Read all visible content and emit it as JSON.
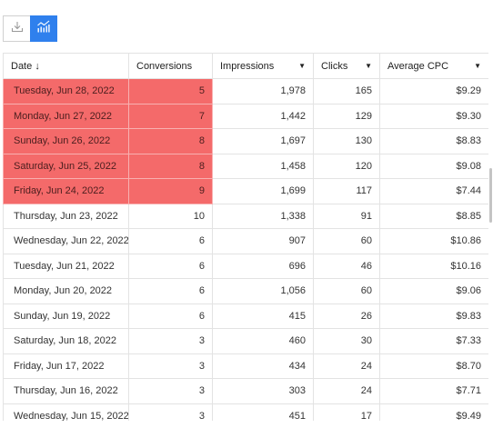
{
  "toolbar": {
    "download_icon": "download-icon",
    "chart_icon": "bar-chart-icon"
  },
  "columns": {
    "date": "Date",
    "date_sort": "↓",
    "conversions": "Conversions",
    "impressions": "Impressions",
    "clicks": "Clicks",
    "average_cpc": "Average CPC",
    "menu_caret": "▼"
  },
  "rows": [
    {
      "date": "Tuesday, Jun 28, 2022",
      "conversions": "5",
      "impressions": "1,978",
      "clicks": "165",
      "cpc": "$9.29",
      "highlight": true
    },
    {
      "date": "Monday, Jun 27, 2022",
      "conversions": "7",
      "impressions": "1,442",
      "clicks": "129",
      "cpc": "$9.30",
      "highlight": true
    },
    {
      "date": "Sunday, Jun 26, 2022",
      "conversions": "8",
      "impressions": "1,697",
      "clicks": "130",
      "cpc": "$8.83",
      "highlight": true
    },
    {
      "date": "Saturday, Jun 25, 2022",
      "conversions": "8",
      "impressions": "1,458",
      "clicks": "120",
      "cpc": "$9.08",
      "highlight": true
    },
    {
      "date": "Friday, Jun 24, 2022",
      "conversions": "9",
      "impressions": "1,699",
      "clicks": "117",
      "cpc": "$7.44",
      "highlight": true
    },
    {
      "date": "Thursday, Jun 23, 2022",
      "conversions": "10",
      "impressions": "1,338",
      "clicks": "91",
      "cpc": "$8.85",
      "highlight": false
    },
    {
      "date": "Wednesday, Jun 22, 2022",
      "conversions": "6",
      "impressions": "907",
      "clicks": "60",
      "cpc": "$10.86",
      "highlight": false
    },
    {
      "date": "Tuesday, Jun 21, 2022",
      "conversions": "6",
      "impressions": "696",
      "clicks": "46",
      "cpc": "$10.16",
      "highlight": false
    },
    {
      "date": "Monday, Jun 20, 2022",
      "conversions": "6",
      "impressions": "1,056",
      "clicks": "60",
      "cpc": "$9.06",
      "highlight": false
    },
    {
      "date": "Sunday, Jun 19, 2022",
      "conversions": "6",
      "impressions": "415",
      "clicks": "26",
      "cpc": "$9.83",
      "highlight": false
    },
    {
      "date": "Saturday, Jun 18, 2022",
      "conversions": "3",
      "impressions": "460",
      "clicks": "30",
      "cpc": "$7.33",
      "highlight": false
    },
    {
      "date": "Friday, Jun 17, 2022",
      "conversions": "3",
      "impressions": "434",
      "clicks": "24",
      "cpc": "$8.70",
      "highlight": false
    },
    {
      "date": "Thursday, Jun 16, 2022",
      "conversions": "3",
      "impressions": "303",
      "clicks": "24",
      "cpc": "$7.71",
      "highlight": false
    },
    {
      "date": "Wednesday, Jun 15, 2022",
      "conversions": "3",
      "impressions": "451",
      "clicks": "17",
      "cpc": "$9.49",
      "highlight": false
    }
  ],
  "colors": {
    "highlight": "#f46a6a",
    "accent": "#2f80ed"
  }
}
